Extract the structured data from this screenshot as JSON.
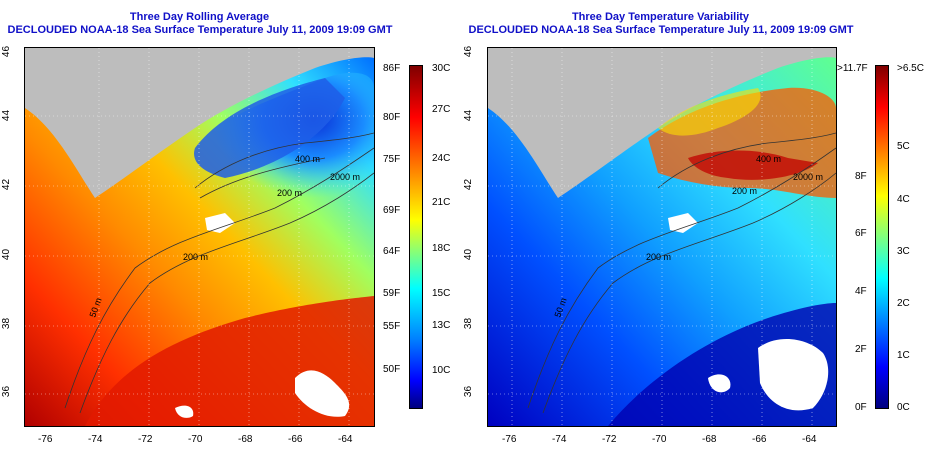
{
  "left": {
    "title_line1": "Three Day Rolling Average",
    "title_line2": "DECLOUDED NOAA-18 Sea Surface Temperature July 11, 2009 19:09 GMT",
    "x_ticks": [
      "-76",
      "-74",
      "-72",
      "-70",
      "-68",
      "-66",
      "-64"
    ],
    "y_ticks": [
      "46",
      "44",
      "42",
      "40",
      "38",
      "36"
    ],
    "contours": [
      "400 m",
      "2000 m",
      "200 m",
      "200 m",
      "50 m"
    ],
    "colorbar_f": [
      "86F",
      "80F",
      "75F",
      "69F",
      "64F",
      "59F",
      "55F",
      "50F"
    ],
    "colorbar_c": [
      "30C",
      "27C",
      "24C",
      "21C",
      "18C",
      "15C",
      "13C",
      "10C"
    ]
  },
  "right": {
    "title_line1": "Three Day Temperature Variability",
    "title_line2": "DECLOUDED NOAA-18 Sea Surface Temperature July 11, 2009 19:09 GMT",
    "x_ticks": [
      "-76",
      "-74",
      "-72",
      "-70",
      "-68",
      "-66",
      "-64"
    ],
    "y_ticks": [
      "46",
      "44",
      "42",
      "40",
      "38",
      "36"
    ],
    "contours": [
      "400 m",
      "2000 m",
      "200 m",
      "200 m",
      "50 m"
    ],
    "colorbar_f": [
      ">11.7F",
      "8F",
      "6F",
      "4F",
      "2F",
      "0F"
    ],
    "colorbar_c": [
      ">6.5C",
      "5C",
      "4C",
      "3C",
      "2C",
      "1C",
      "0C"
    ]
  },
  "colors": {
    "title": "#1010c8",
    "land": "#bdbdbd",
    "cloud": "#ffffff",
    "jet": [
      "#00007f",
      "#0000ff",
      "#007fff",
      "#00ffff",
      "#7fff7f",
      "#ffff00",
      "#ff7f00",
      "#ff0000",
      "#7f0000"
    ]
  }
}
